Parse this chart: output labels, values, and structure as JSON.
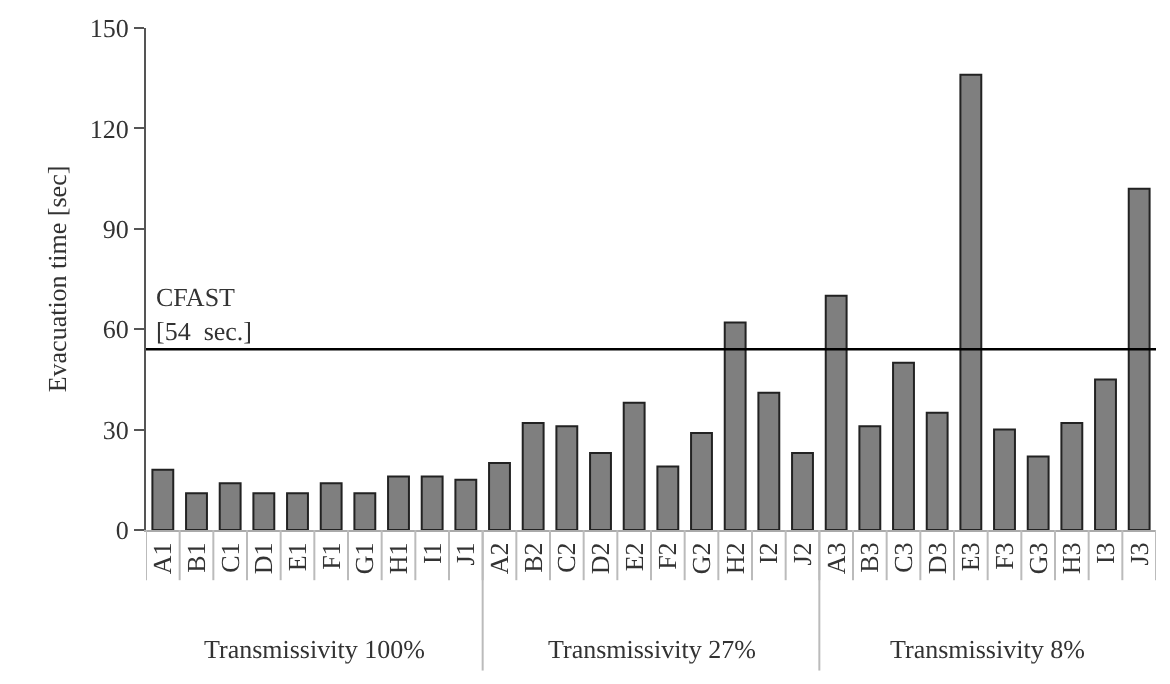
{
  "chart_data": {
    "type": "bar",
    "ylabel": "Evacuation time [sec]",
    "categories": [
      "A1",
      "B1",
      "C1",
      "D1",
      "E1",
      "F1",
      "G1",
      "H1",
      "I1",
      "J1",
      "A2",
      "B2",
      "C2",
      "D2",
      "E2",
      "F2",
      "G2",
      "H2",
      "I2",
      "J2",
      "A3",
      "B3",
      "C3",
      "D3",
      "E3",
      "F3",
      "G3",
      "H3",
      "I3",
      "J3"
    ],
    "values": [
      18,
      11,
      14,
      11,
      11,
      14,
      11,
      16,
      16,
      15,
      20,
      32,
      31,
      23,
      38,
      19,
      29,
      62,
      41,
      23,
      70,
      31,
      50,
      35,
      136,
      30,
      22,
      32,
      45,
      102
    ],
    "color": "#7f7f7f",
    "ylim": [
      0,
      150
    ],
    "yticks": [
      0,
      30,
      60,
      90,
      120,
      150
    ],
    "ref_lines": [
      {
        "axis": "y",
        "value": 54,
        "label": "CFAST\n[54  sec.]",
        "color": "#000000"
      }
    ],
    "annotations": [
      "Transmissivity 100%",
      "Transmissivity 27%",
      "Transmissivity 8%"
    ],
    "line_style": "solid"
  }
}
